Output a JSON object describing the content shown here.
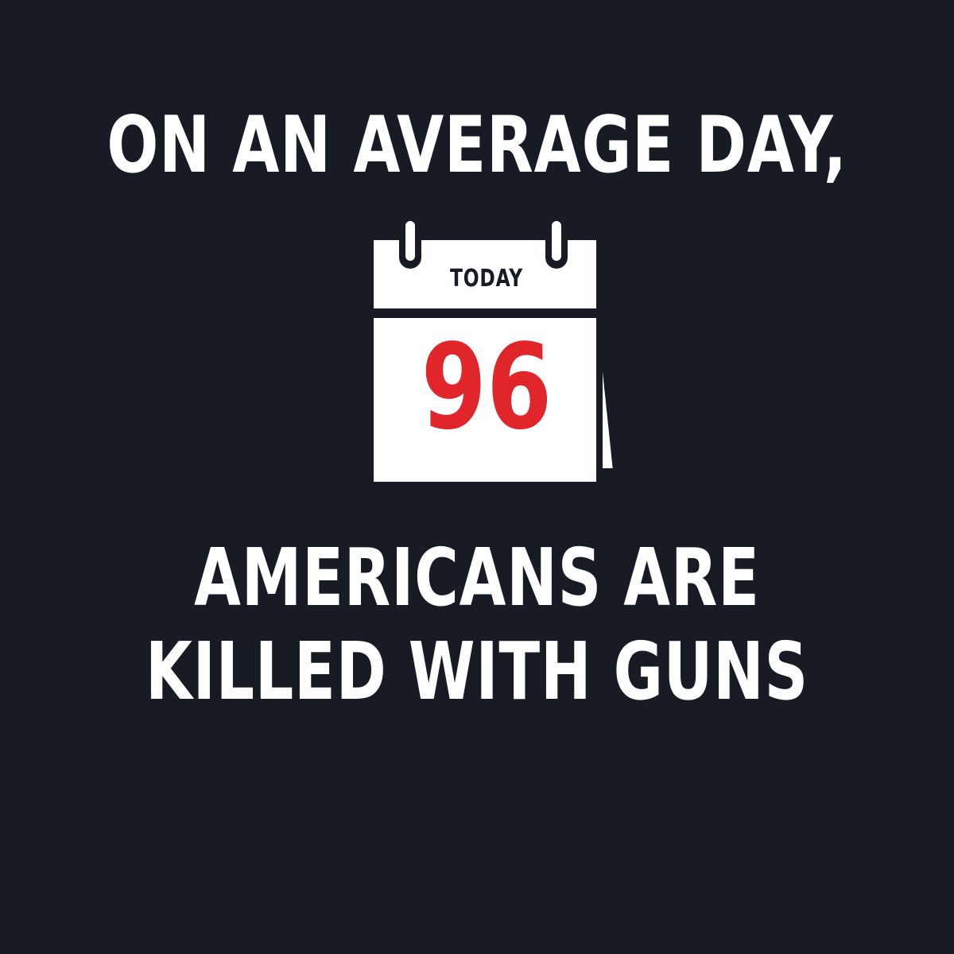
{
  "headline_top": "ON AN AVERAGE DAY,",
  "calendar": {
    "label": "TODAY",
    "number": "96",
    "number_color": "#e0252b",
    "page_color": "#ffffff",
    "frame_color": "#171b24"
  },
  "headline_bottom": {
    "line1": "AMERICANS ARE",
    "line2": "KILLED WITH GUNS"
  },
  "colors": {
    "background": "#171b24",
    "text": "#ffffff",
    "accent": "#e0252b"
  }
}
